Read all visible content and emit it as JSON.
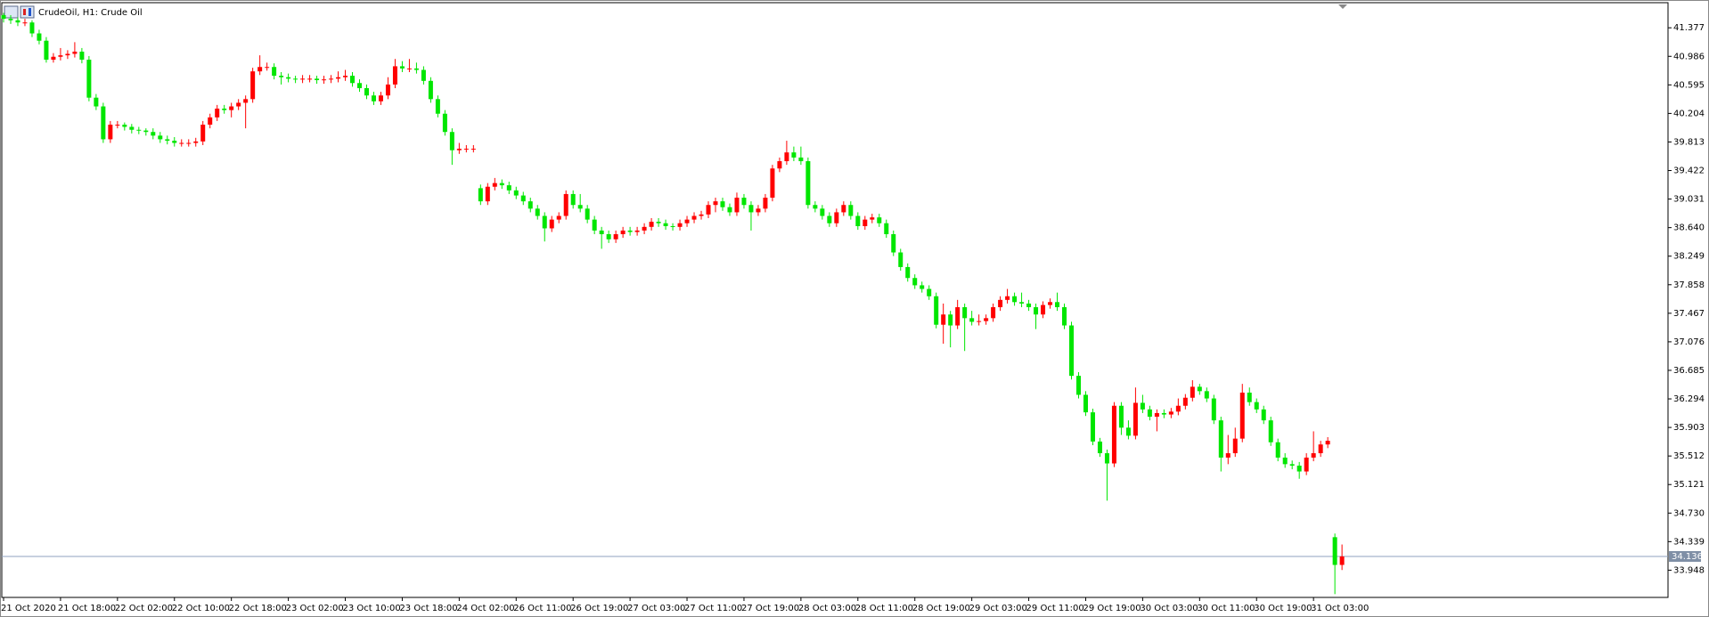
{
  "chart_data": {
    "type": "candlestick",
    "title": "CrudeOil, H1:  Crude Oil",
    "up_color": "#ff0000",
    "down_color": "#00e600",
    "ylim": [
      33.575,
      41.721
    ],
    "yticks": [
      41.377,
      40.986,
      40.595,
      40.204,
      39.813,
      39.422,
      39.031,
      {
        "value": 38.64,
        "label": "38.640"
      },
      38.249,
      37.858,
      37.467,
      37.076,
      36.685,
      36.294,
      35.903,
      35.512,
      35.121,
      {
        "value": 34.73,
        "label": "34.730"
      },
      34.339,
      33.948
    ],
    "current_price": 34.136,
    "categories": [
      "21 Oct 2020",
      null,
      null,
      null,
      null,
      null,
      null,
      null,
      "21 Oct 18:00",
      null,
      null,
      null,
      null,
      null,
      null,
      null,
      "22 Oct 02:00",
      null,
      null,
      null,
      null,
      null,
      null,
      null,
      "22 Oct 10:00",
      null,
      null,
      null,
      null,
      null,
      null,
      null,
      "22 Oct 18:00",
      null,
      null,
      null,
      null,
      null,
      null,
      null,
      "23 Oct 02:00",
      null,
      null,
      null,
      null,
      null,
      null,
      null,
      "23 Oct 10:00",
      null,
      null,
      null,
      null,
      null,
      null,
      null,
      "23 Oct 18:00",
      null,
      null,
      null,
      null,
      null,
      null,
      null,
      "24 Oct 02:00",
      null,
      null,
      null,
      null,
      null,
      null,
      null,
      "26 Oct 11:00",
      null,
      null,
      null,
      null,
      null,
      null,
      null,
      "26 Oct 19:00",
      null,
      null,
      null,
      null,
      null,
      null,
      null,
      "27 Oct 03:00",
      null,
      null,
      null,
      null,
      null,
      null,
      null,
      "27 Oct 11:00",
      null,
      null,
      null,
      null,
      null,
      null,
      null,
      "27 Oct 19:00",
      null,
      null,
      null,
      null,
      null,
      null,
      null,
      "28 Oct 03:00",
      null,
      null,
      null,
      null,
      null,
      null,
      null,
      "28 Oct 11:00",
      null,
      null,
      null,
      null,
      null,
      null,
      null,
      "28 Oct 19:00",
      null,
      null,
      null,
      null,
      null,
      null,
      null,
      "29 Oct 03:00",
      null,
      null,
      null,
      null,
      null,
      null,
      null,
      "29 Oct 11:00",
      null,
      null,
      null,
      null,
      null,
      null,
      null,
      "29 Oct 19:00",
      null,
      null,
      null,
      null,
      null,
      null,
      null,
      "30 Oct 03:00",
      null,
      null,
      null,
      null,
      null,
      null,
      null,
      "30 Oct 11:00",
      null,
      null,
      null,
      null,
      null,
      null,
      null,
      "30 Oct 19:00",
      null,
      null,
      null,
      null,
      null,
      null,
      null,
      "31 Oct 03:00",
      null,
      null,
      null,
      null
    ],
    "candles": [
      [
        41.55,
        41.58,
        41.45,
        41.5
      ],
      [
        41.5,
        41.55,
        41.43,
        41.48
      ],
      [
        41.48,
        41.52,
        41.4,
        41.45
      ],
      [
        41.45,
        41.5,
        41.4,
        41.45
      ],
      [
        41.45,
        41.48,
        41.25,
        41.3
      ],
      [
        41.3,
        41.35,
        41.15,
        41.2
      ],
      [
        41.2,
        41.25,
        40.9,
        40.94
      ],
      [
        40.94,
        41.03,
        40.9,
        40.98
      ],
      [
        40.98,
        41.1,
        40.93,
        41.0
      ],
      [
        41.0,
        41.07,
        40.95,
        41.02
      ],
      [
        41.02,
        41.18,
        40.97,
        41.05
      ],
      [
        41.05,
        41.1,
        40.89,
        40.94
      ],
      [
        40.94,
        40.99,
        40.37,
        40.42
      ],
      [
        40.42,
        40.47,
        40.25,
        40.3
      ],
      [
        40.3,
        40.35,
        39.8,
        39.85
      ],
      [
        39.85,
        40.1,
        39.8,
        40.05
      ],
      [
        40.05,
        40.1,
        40.0,
        40.05
      ],
      [
        40.05,
        40.08,
        39.97,
        40.02
      ],
      [
        40.02,
        40.06,
        39.93,
        39.98
      ],
      [
        39.98,
        40.02,
        39.92,
        39.97
      ],
      [
        39.97,
        40.0,
        39.9,
        39.95
      ],
      [
        39.95,
        40.0,
        39.85,
        39.9
      ],
      [
        39.9,
        39.95,
        39.8,
        39.85
      ],
      [
        39.85,
        39.9,
        39.78,
        39.83
      ],
      [
        39.83,
        39.88,
        39.75,
        39.8
      ],
      [
        39.8,
        39.85,
        39.75,
        39.8
      ],
      [
        39.8,
        39.85,
        39.75,
        39.8
      ],
      [
        39.8,
        39.87,
        39.75,
        39.82
      ],
      [
        39.82,
        40.1,
        39.77,
        40.05
      ],
      [
        40.05,
        40.2,
        40.0,
        40.15
      ],
      [
        40.15,
        40.32,
        40.1,
        40.27
      ],
      [
        40.27,
        40.32,
        40.2,
        40.25
      ],
      [
        40.25,
        40.35,
        40.15,
        40.3
      ],
      [
        40.3,
        40.4,
        40.25,
        40.35
      ],
      [
        40.35,
        40.45,
        40.0,
        40.4
      ],
      [
        40.4,
        40.83,
        40.35,
        40.78
      ],
      [
        40.78,
        41.0,
        40.73,
        40.84
      ],
      [
        40.84,
        40.9,
        40.79,
        40.84
      ],
      [
        40.84,
        40.89,
        40.67,
        40.72
      ],
      [
        40.72,
        40.77,
        40.6,
        40.7
      ],
      [
        40.7,
        40.75,
        40.63,
        40.68
      ],
      [
        40.68,
        40.72,
        40.62,
        40.67
      ],
      [
        40.67,
        40.73,
        40.62,
        40.68
      ],
      [
        40.68,
        40.73,
        40.63,
        40.68
      ],
      [
        40.68,
        40.72,
        40.61,
        40.66
      ],
      [
        40.66,
        40.72,
        40.61,
        40.67
      ],
      [
        40.67,
        40.73,
        40.62,
        40.68
      ],
      [
        40.68,
        40.78,
        40.63,
        40.7
      ],
      [
        40.7,
        40.8,
        40.65,
        40.72
      ],
      [
        40.72,
        40.77,
        40.57,
        40.62
      ],
      [
        40.62,
        40.67,
        40.5,
        40.55
      ],
      [
        40.55,
        40.6,
        40.4,
        40.45
      ],
      [
        40.45,
        40.5,
        40.32,
        40.37
      ],
      [
        40.37,
        40.5,
        40.32,
        40.45
      ],
      [
        40.45,
        40.7,
        40.4,
        40.6
      ],
      [
        40.6,
        40.95,
        40.55,
        40.85
      ],
      [
        40.85,
        40.92,
        40.77,
        40.82
      ],
      [
        40.82,
        40.95,
        40.77,
        40.82
      ],
      [
        40.82,
        40.9,
        40.75,
        40.8
      ],
      [
        40.8,
        40.85,
        40.6,
        40.65
      ],
      [
        40.65,
        40.7,
        40.35,
        40.4
      ],
      [
        40.4,
        40.45,
        40.15,
        40.2
      ],
      [
        40.2,
        40.25,
        39.9,
        39.95
      ],
      [
        39.95,
        40.0,
        39.5,
        39.7
      ],
      [
        39.7,
        39.8,
        39.65,
        39.72
      ],
      [
        39.72,
        39.77,
        39.67,
        39.72
      ],
      [
        39.72,
        39.77,
        39.67,
        39.72
      ],
      [
        39.18,
        39.23,
        38.95,
        39.0
      ],
      [
        39.0,
        39.25,
        38.95,
        39.2
      ],
      [
        39.2,
        39.32,
        39.15,
        39.25
      ],
      [
        39.25,
        39.3,
        39.17,
        39.22
      ],
      [
        39.22,
        39.27,
        39.1,
        39.15
      ],
      [
        39.15,
        39.2,
        39.03,
        39.08
      ],
      [
        39.08,
        39.13,
        38.95,
        39.0
      ],
      [
        39.0,
        39.05,
        38.85,
        38.9
      ],
      [
        38.9,
        38.95,
        38.75,
        38.8
      ],
      [
        38.8,
        38.85,
        38.45,
        38.63
      ],
      [
        38.63,
        38.8,
        38.58,
        38.75
      ],
      [
        38.75,
        38.85,
        38.7,
        38.8
      ],
      [
        38.8,
        39.15,
        38.75,
        39.1
      ],
      [
        39.1,
        39.15,
        38.9,
        38.95
      ],
      [
        38.95,
        39.1,
        38.85,
        38.9
      ],
      [
        38.9,
        38.95,
        38.7,
        38.75
      ],
      [
        38.75,
        38.8,
        38.55,
        38.6
      ],
      [
        38.6,
        38.65,
        38.35,
        38.55
      ],
      [
        38.55,
        38.6,
        38.43,
        38.48
      ],
      [
        38.48,
        38.6,
        38.43,
        38.55
      ],
      [
        38.55,
        38.65,
        38.5,
        38.6
      ],
      [
        38.6,
        38.65,
        38.53,
        38.58
      ],
      [
        38.58,
        38.65,
        38.53,
        38.6
      ],
      [
        38.6,
        38.7,
        38.55,
        38.65
      ],
      [
        38.65,
        38.77,
        38.6,
        38.72
      ],
      [
        38.72,
        38.77,
        38.65,
        38.7
      ],
      [
        38.7,
        38.75,
        38.61,
        38.66
      ],
      [
        38.66,
        38.7,
        38.6,
        38.65
      ],
      [
        38.65,
        38.75,
        38.6,
        38.7
      ],
      [
        38.7,
        38.8,
        38.65,
        38.75
      ],
      [
        38.75,
        38.85,
        38.7,
        38.8
      ],
      [
        38.8,
        38.87,
        38.75,
        38.82
      ],
      [
        38.82,
        39.0,
        38.77,
        38.95
      ],
      [
        38.95,
        39.05,
        38.85,
        39.0
      ],
      [
        39.0,
        39.05,
        38.87,
        38.92
      ],
      [
        38.92,
        38.97,
        38.8,
        38.85
      ],
      [
        38.85,
        39.12,
        38.8,
        39.05
      ],
      [
        39.05,
        39.1,
        38.9,
        38.95
      ],
      [
        38.95,
        39.0,
        38.6,
        38.85
      ],
      [
        38.85,
        38.95,
        38.8,
        38.9
      ],
      [
        38.9,
        39.1,
        38.85,
        39.05
      ],
      [
        39.05,
        39.5,
        39.0,
        39.45
      ],
      [
        39.45,
        39.6,
        39.4,
        39.55
      ],
      [
        39.55,
        39.83,
        39.5,
        39.67
      ],
      [
        39.67,
        39.75,
        39.55,
        39.6
      ],
      [
        39.6,
        39.75,
        39.5,
        39.55
      ],
      [
        39.55,
        39.6,
        38.9,
        38.95
      ],
      [
        38.95,
        39.0,
        38.85,
        38.9
      ],
      [
        38.9,
        38.95,
        38.75,
        38.8
      ],
      [
        38.8,
        38.85,
        38.65,
        38.7
      ],
      [
        38.7,
        38.9,
        38.65,
        38.85
      ],
      [
        38.85,
        39.0,
        38.8,
        38.95
      ],
      [
        38.95,
        39.0,
        38.75,
        38.8
      ],
      [
        38.8,
        38.85,
        38.61,
        38.66
      ],
      [
        38.66,
        38.8,
        38.61,
        38.75
      ],
      [
        38.75,
        38.83,
        38.7,
        38.78
      ],
      [
        38.78,
        38.83,
        38.65,
        38.7
      ],
      [
        38.7,
        38.75,
        38.5,
        38.55
      ],
      [
        38.55,
        38.6,
        38.25,
        38.3
      ],
      [
        38.3,
        38.35,
        38.05,
        38.1
      ],
      [
        38.1,
        38.15,
        37.9,
        37.95
      ],
      [
        37.95,
        38.0,
        37.8,
        37.85
      ],
      [
        37.85,
        37.9,
        37.75,
        37.8
      ],
      [
        37.8,
        37.85,
        37.65,
        37.7
      ],
      [
        37.7,
        37.75,
        37.26,
        37.31
      ],
      [
        37.31,
        37.6,
        37.05,
        37.45
      ],
      [
        37.45,
        37.5,
        37.0,
        37.3
      ],
      [
        37.3,
        37.65,
        37.25,
        37.55
      ],
      [
        37.55,
        37.6,
        36.95,
        37.4
      ],
      [
        37.4,
        37.5,
        37.3,
        37.35
      ],
      [
        37.35,
        37.45,
        37.3,
        37.36
      ],
      [
        37.36,
        37.45,
        37.31,
        37.4
      ],
      [
        37.4,
        37.6,
        37.35,
        37.55
      ],
      [
        37.55,
        37.7,
        37.5,
        37.65
      ],
      [
        37.65,
        37.8,
        37.6,
        37.7
      ],
      [
        37.7,
        37.75,
        37.57,
        37.62
      ],
      [
        37.62,
        37.75,
        37.55,
        37.6
      ],
      [
        37.6,
        37.65,
        37.5,
        37.55
      ],
      [
        37.55,
        37.6,
        37.25,
        37.45
      ],
      [
        37.45,
        37.63,
        37.4,
        37.58
      ],
      [
        37.58,
        37.67,
        37.53,
        37.62
      ],
      [
        37.62,
        37.75,
        37.5,
        37.55
      ],
      [
        37.55,
        37.6,
        37.25,
        37.3
      ],
      [
        37.3,
        37.35,
        36.56,
        36.61
      ],
      [
        36.61,
        36.66,
        36.3,
        36.35
      ],
      [
        36.35,
        36.4,
        36.06,
        36.11
      ],
      [
        36.11,
        36.16,
        35.66,
        35.71
      ],
      [
        35.71,
        35.76,
        35.5,
        35.55
      ],
      [
        35.55,
        35.6,
        34.9,
        35.41
      ],
      [
        35.41,
        36.25,
        35.36,
        36.2
      ],
      [
        36.2,
        36.25,
        35.8,
        35.9
      ],
      [
        35.9,
        36.0,
        35.74,
        35.79
      ],
      [
        35.79,
        36.45,
        35.74,
        36.24
      ],
      [
        36.24,
        36.35,
        36.1,
        36.15
      ],
      [
        36.15,
        36.2,
        36.0,
        36.05
      ],
      [
        36.05,
        36.15,
        35.85,
        36.1
      ],
      [
        36.1,
        36.15,
        36.03,
        36.08
      ],
      [
        36.08,
        36.17,
        36.03,
        36.12
      ],
      [
        36.12,
        36.3,
        36.07,
        36.2
      ],
      [
        36.2,
        36.36,
        36.15,
        36.31
      ],
      [
        36.31,
        36.55,
        36.26,
        36.46
      ],
      [
        36.46,
        36.5,
        36.35,
        36.4
      ],
      [
        36.4,
        36.45,
        36.25,
        36.3
      ],
      [
        36.3,
        36.35,
        35.95,
        36.0
      ],
      [
        36.0,
        36.05,
        35.3,
        35.49
      ],
      [
        35.49,
        35.8,
        35.4,
        35.55
      ],
      [
        35.55,
        35.9,
        35.5,
        35.75
      ],
      [
        35.75,
        36.5,
        35.7,
        36.38
      ],
      [
        36.38,
        36.45,
        36.2,
        36.25
      ],
      [
        36.25,
        36.3,
        36.1,
        36.15
      ],
      [
        36.15,
        36.2,
        35.95,
        36.0
      ],
      [
        36.0,
        36.05,
        35.65,
        35.7
      ],
      [
        35.7,
        35.75,
        35.44,
        35.49
      ],
      [
        35.49,
        35.55,
        35.35,
        35.4
      ],
      [
        35.4,
        35.45,
        35.33,
        35.38
      ],
      [
        35.38,
        35.43,
        35.2,
        35.3
      ],
      [
        35.3,
        35.55,
        35.25,
        35.49
      ],
      [
        35.49,
        35.85,
        35.44,
        35.55
      ],
      [
        35.55,
        35.72,
        35.5,
        35.67
      ],
      [
        35.67,
        35.77,
        35.62,
        35.72
      ],
      [
        34.4,
        34.45,
        33.62,
        34.02
      ],
      [
        34.02,
        34.3,
        33.95,
        34.136
      ]
    ]
  }
}
